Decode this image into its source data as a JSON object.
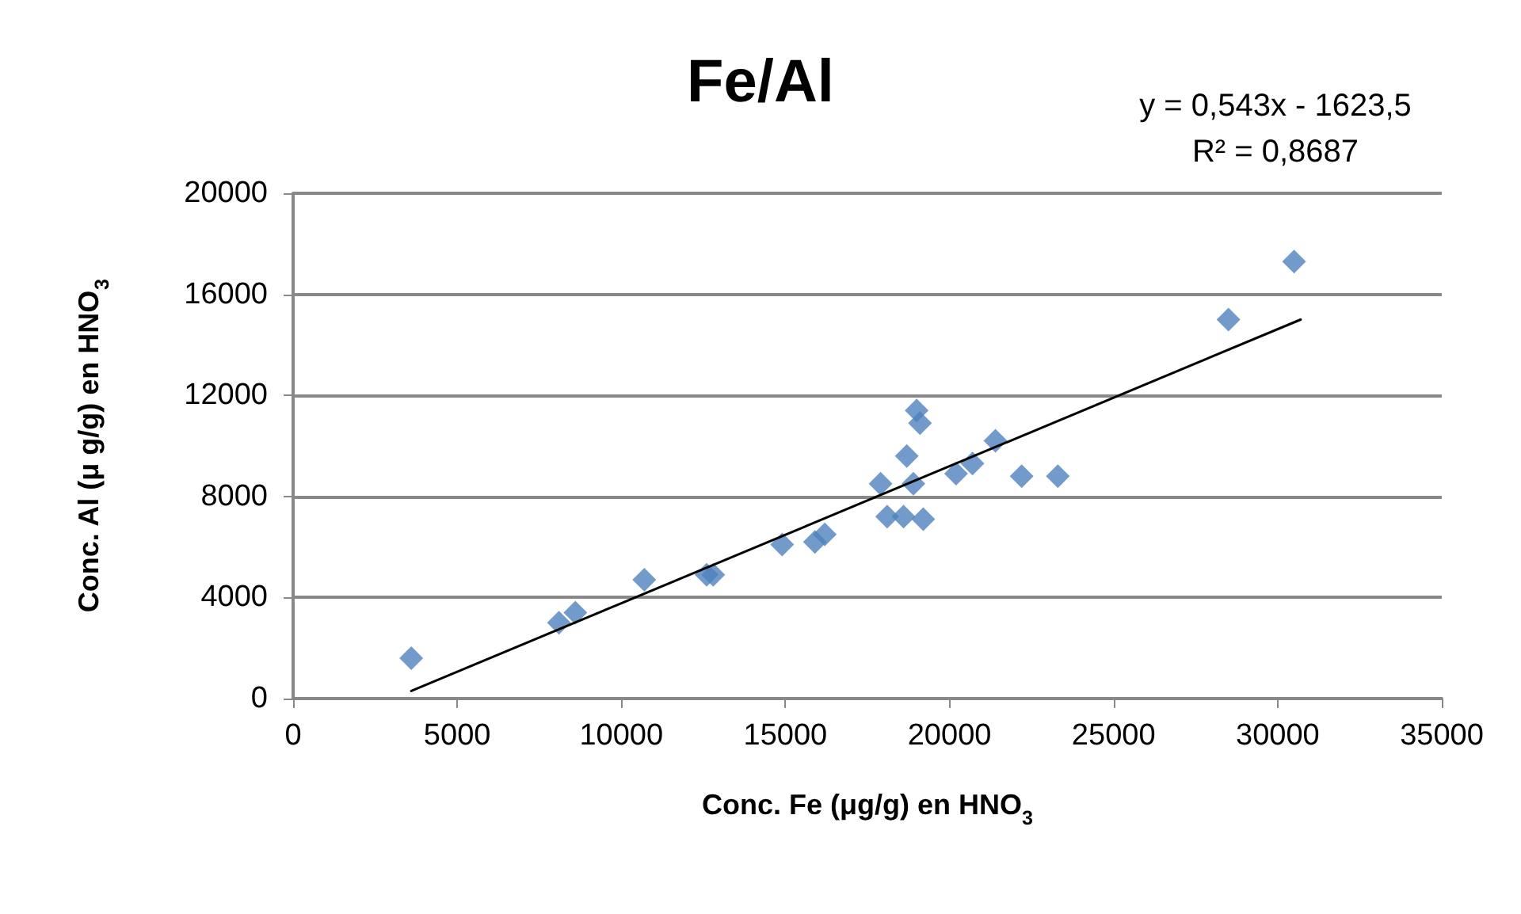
{
  "chart_data": {
    "type": "scatter",
    "title": "Fe/Al",
    "xlabel": "Conc. Fe (μg/g) en HNO$_{3}$",
    "ylabel": "Conc. Al (μ g/g) en HNO$_{3}$",
    "annotations": [
      "y = 0,543x - 1623,5",
      "R² = 0,8687"
    ],
    "series": [
      {
        "color": "#4f81bd",
        "marker": "diamond",
        "x": [
          3600,
          8100,
          8600,
          10700,
          12600,
          12800,
          14900,
          15900,
          16200,
          17900,
          18100,
          18600,
          19200,
          18700,
          18900,
          19000,
          19100,
          20200,
          20700,
          21400,
          22200,
          23300,
          28500,
          30500
        ],
        "values": [
          1600,
          3000,
          3400,
          4700,
          4900,
          4900,
          6100,
          6200,
          6500,
          8500,
          7200,
          7200,
          7100,
          9600,
          8500,
          11400,
          10900,
          8900,
          9300,
          10200,
          8800,
          8800,
          15000,
          17300
        ]
      },
      {
        "type": "line",
        "color": "#000000",
        "marker": "none",
        "line_style": "solid",
        "x": [
          3600,
          30700
        ],
        "values": [
          300,
          15000
        ]
      }
    ],
    "xlim": [
      0,
      35000
    ],
    "xticks": [
      0,
      5000,
      10000,
      15000,
      20000,
      25000,
      30000,
      35000
    ],
    "ylim": [
      0,
      20000
    ],
    "yticks": [
      0,
      4000,
      8000,
      12000,
      16000,
      20000
    ],
    "grid": "y"
  }
}
